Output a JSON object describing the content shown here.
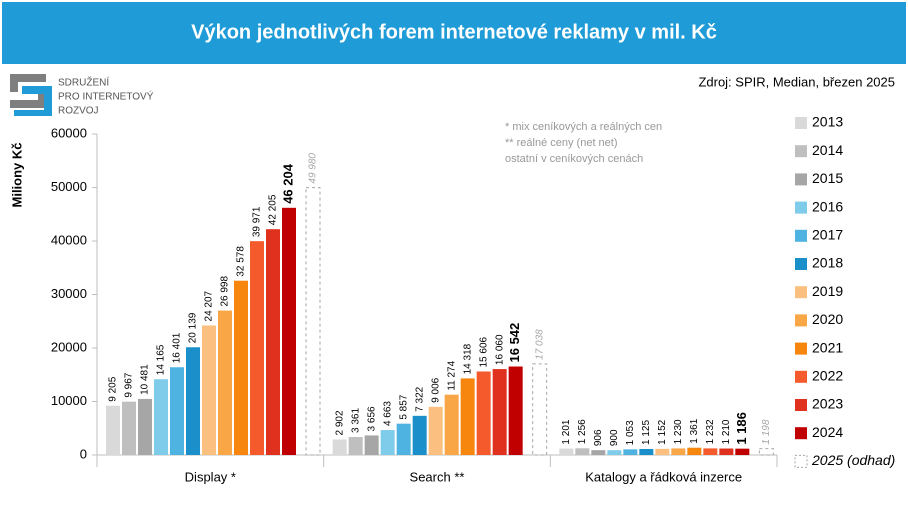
{
  "header": {
    "title": "Výkon jednotlivých forem internetové reklamy v mil. Kč"
  },
  "logo": {
    "lines": [
      "SDRUŽENÍ",
      "PRO INTERNETOVÝ",
      "ROZVOJ"
    ]
  },
  "source": "Zdroj: SPIR, Median, březen 2025",
  "chart_data": {
    "type": "bar",
    "y_label": "Miliony Kč",
    "notes": [
      "* mix ceníkových a reálných cen",
      "** reálné ceny (net net)",
      "ostatní v ceníkových cenách"
    ],
    "categories": [
      "Display *",
      "Search **",
      "Katalogy a řádková inzerce"
    ],
    "ylim": [
      0,
      60000
    ],
    "yticks": [
      0,
      10000,
      20000,
      30000,
      40000,
      50000,
      60000
    ],
    "series": [
      {
        "name": "2013",
        "color": "#d9d9d9",
        "values": [
          9205,
          2902,
          1201
        ],
        "value_labels": [
          "9 205",
          "2 902",
          "1 201"
        ]
      },
      {
        "name": "2014",
        "color": "#bfbfbf",
        "values": [
          9967,
          3361,
          1256
        ],
        "value_labels": [
          "9 967",
          "3 361",
          "1 256"
        ]
      },
      {
        "name": "2015",
        "color": "#a6a6a6",
        "values": [
          10481,
          3656,
          906
        ],
        "value_labels": [
          "10 481",
          "3 656",
          "906"
        ]
      },
      {
        "name": "2016",
        "color": "#7fcbea",
        "values": [
          14165,
          4663,
          900
        ],
        "value_labels": [
          "14 165",
          "4 663",
          "900"
        ]
      },
      {
        "name": "2017",
        "color": "#4eb3e0",
        "values": [
          16401,
          5857,
          1053
        ],
        "value_labels": [
          "16 401",
          "5 857",
          "1 053"
        ]
      },
      {
        "name": "2018",
        "color": "#1a8fc9",
        "values": [
          20139,
          7322,
          1125
        ],
        "value_labels": [
          "20 139",
          "7 322",
          "1 125"
        ]
      },
      {
        "name": "2019",
        "color": "#fbc07f",
        "values": [
          24207,
          9006,
          1152
        ],
        "value_labels": [
          "24 207",
          "9 006",
          "1 152"
        ]
      },
      {
        "name": "2020",
        "color": "#f9a646",
        "values": [
          26998,
          11274,
          1230
        ],
        "value_labels": [
          "26 998",
          "11 274",
          "1 230"
        ]
      },
      {
        "name": "2021",
        "color": "#f7860f",
        "values": [
          32578,
          14318,
          1361
        ],
        "value_labels": [
          "32 578",
          "14 318",
          "1 361"
        ]
      },
      {
        "name": "2022",
        "color": "#f55a2c",
        "values": [
          39971,
          15606,
          1232
        ],
        "value_labels": [
          "39 971",
          "15 606",
          "1 232"
        ]
      },
      {
        "name": "2023",
        "color": "#e0301e",
        "values": [
          42205,
          16060,
          1210
        ],
        "value_labels": [
          "42 205",
          "16 060",
          "1 210"
        ]
      },
      {
        "name": "2024",
        "color": "#c00000",
        "bold": true,
        "values": [
          46204,
          16542,
          1186
        ],
        "value_labels": [
          "46 204",
          "16 542",
          "1 186"
        ]
      },
      {
        "name": "2025 (odhad)",
        "color": "#a6a6a6",
        "dashed": true,
        "values": [
          49980,
          17038,
          1198
        ],
        "value_labels": [
          "49 980",
          "17 038",
          "1 198"
        ]
      }
    ]
  }
}
